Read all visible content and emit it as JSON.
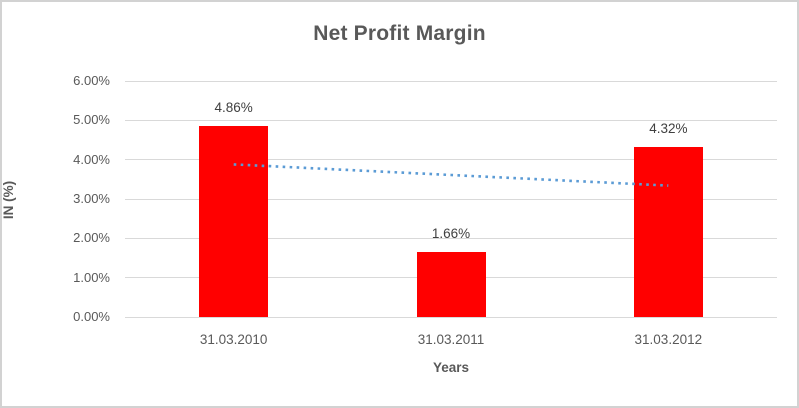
{
  "chart_data": {
    "type": "bar",
    "title": "Net Profit Margin",
    "xlabel": "Years",
    "ylabel": "IN (%)",
    "categories": [
      "31.03.2010",
      "31.03.2011",
      "31.03.2012"
    ],
    "values": [
      4.86,
      1.66,
      4.32
    ],
    "data_labels": [
      "4.86%",
      "1.66%",
      "4.32%"
    ],
    "ylim": [
      0,
      6
    ],
    "ytick_step": 1,
    "ytick_labels": [
      "0.00%",
      "1.00%",
      "2.00%",
      "3.00%",
      "4.00%",
      "5.00%",
      "6.00%"
    ],
    "grid": true,
    "legend": false,
    "trendline": {
      "type": "linear",
      "style": "dotted",
      "values": [
        3.88,
        3.61,
        3.34
      ]
    },
    "colors": {
      "bar": "#FF0000",
      "trendline": "#5B9BD5",
      "gridline": "#D9D9D9",
      "tick_text": "#595959",
      "title_text": "#595959",
      "data_label_text": "#404040",
      "border": "#D2D2D2",
      "background": "#FFFFFF"
    }
  }
}
